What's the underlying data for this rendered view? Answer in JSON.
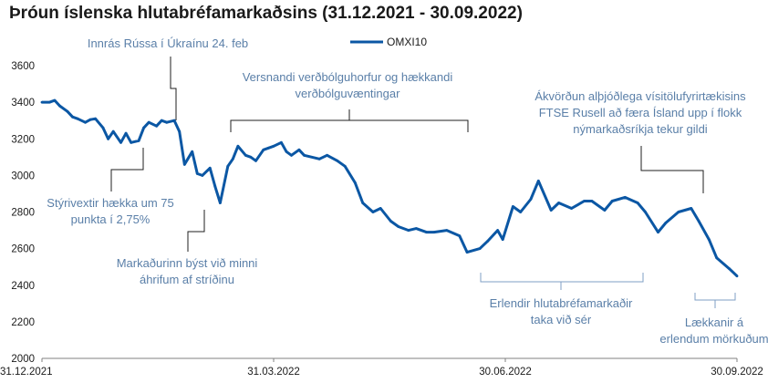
{
  "title": "Þróun íslenska hlutabréfamarkaðsins (31.12.2021 - 30.09.2022)",
  "chart_data": {
    "type": "line",
    "title": "Þróun íslenska hlutabréfamarkaðsins (31.12.2021 - 30.09.2022)",
    "xlabel": "",
    "ylabel": "",
    "ylim": [
      2000,
      3600
    ],
    "yticks": [
      "2000",
      "2200",
      "2400",
      "2600",
      "2800",
      "3000",
      "3200",
      "3400",
      "3600"
    ],
    "xticks": [
      "31.12.2021",
      "31.03.2022",
      "30.06.2022",
      "30.09.2022"
    ],
    "xlim": [
      "2021-12-31",
      "2022-09-30"
    ],
    "grid": false,
    "legend": "top-center",
    "series": [
      {
        "name": "OMXI10",
        "color": "#0b57a4",
        "x": [
          "2021-12-31",
          "2022-01-03",
          "2022-01-05",
          "2022-01-07",
          "2022-01-10",
          "2022-01-12",
          "2022-01-14",
          "2022-01-17",
          "2022-01-19",
          "2022-01-21",
          "2022-01-24",
          "2022-01-26",
          "2022-01-28",
          "2022-01-31",
          "2022-02-02",
          "2022-02-04",
          "2022-02-07",
          "2022-02-09",
          "2022-02-11",
          "2022-02-14",
          "2022-02-16",
          "2022-02-18",
          "2022-02-21",
          "2022-02-23",
          "2022-02-25",
          "2022-02-28",
          "2022-03-02",
          "2022-03-04",
          "2022-03-07",
          "2022-03-09",
          "2022-03-11",
          "2022-03-14",
          "2022-03-16",
          "2022-03-18",
          "2022-03-21",
          "2022-03-23",
          "2022-03-25",
          "2022-03-28",
          "2022-03-30",
          "2022-04-01",
          "2022-04-04",
          "2022-04-06",
          "2022-04-08",
          "2022-04-11",
          "2022-04-13",
          "2022-04-19",
          "2022-04-22",
          "2022-04-26",
          "2022-04-29",
          "2022-05-03",
          "2022-05-06",
          "2022-05-10",
          "2022-05-13",
          "2022-05-17",
          "2022-05-20",
          "2022-05-24",
          "2022-05-27",
          "2022-05-31",
          "2022-06-03",
          "2022-06-08",
          "2022-06-13",
          "2022-06-16",
          "2022-06-21",
          "2022-06-24",
          "2022-06-28",
          "2022-06-30",
          "2022-07-04",
          "2022-07-07",
          "2022-07-11",
          "2022-07-14",
          "2022-07-19",
          "2022-07-22",
          "2022-07-27",
          "2022-08-01",
          "2022-08-04",
          "2022-08-09",
          "2022-08-12",
          "2022-08-17",
          "2022-08-22",
          "2022-08-25",
          "2022-08-30",
          "2022-09-02",
          "2022-09-07",
          "2022-09-12",
          "2022-09-15",
          "2022-09-19",
          "2022-09-22",
          "2022-09-27",
          "2022-09-30"
        ],
        "values": [
          3400,
          3400,
          3410,
          3380,
          3350,
          3320,
          3310,
          3290,
          3305,
          3310,
          3260,
          3200,
          3240,
          3180,
          3230,
          3180,
          3190,
          3260,
          3290,
          3270,
          3300,
          3290,
          3300,
          3240,
          3060,
          3130,
          3010,
          3000,
          3040,
          2940,
          2850,
          3050,
          3090,
          3160,
          3110,
          3100,
          3080,
          3140,
          3150,
          3160,
          3180,
          3130,
          3110,
          3140,
          3110,
          3090,
          3110,
          3080,
          3050,
          2960,
          2850,
          2800,
          2820,
          2750,
          2720,
          2700,
          2710,
          2690,
          2690,
          2700,
          2670,
          2580,
          2600,
          2640,
          2700,
          2650,
          2830,
          2800,
          2870,
          2970,
          2810,
          2850,
          2820,
          2860,
          2860,
          2810,
          2860,
          2880,
          2850,
          2800,
          2690,
          2740,
          2800,
          2820,
          2750,
          2650,
          2550,
          2490,
          2450
        ]
      }
    ],
    "annotations": [
      "Innrás Rússa í Úkraínu 24. feb",
      "Versnandi verðbólguhorfur og hækkandi verðbólguvæntingar",
      "Ákvörðun alþjóðlega vísitölufyrirtækisins FTSE Rusell að færa Ísland upp í flokk nýmarkaðsríkja tekur gildi",
      "Stýrivextir hækka um 75 punkta í 2,75%",
      "Markaðurinn býst við minni áhrifum af stríðinu",
      "Erlendir hlutabréfamarkaðir taka við sér",
      "Lækkanir á erlendum mörkuðum"
    ]
  },
  "annotations": {
    "invasion": [
      "Innrás Rússa í Úkraínu 24. feb"
    ],
    "inflation": [
      "Versnandi verðbólguhorfur og hækkandi",
      "verðbólguvæntingar"
    ],
    "ftse": [
      "Ákvörðun alþjóðlega vísitölufyrirtækisins",
      "FTSE Rusell að færa Ísland upp í flokk",
      "nýmarkaðsríkja tekur gildi"
    ],
    "rates": [
      "Stýrivextir hækka um 75",
      "punkta í 2,75%"
    ],
    "market": [
      "Markaðurinn býst við minni",
      "áhrifum af stríðinu"
    ],
    "foreign_up": [
      "Erlendir hlutabréfamarkaðir",
      "taka við sér"
    ],
    "foreign_down": [
      "Lækkanir á",
      "erlendum mörkuðum"
    ]
  }
}
